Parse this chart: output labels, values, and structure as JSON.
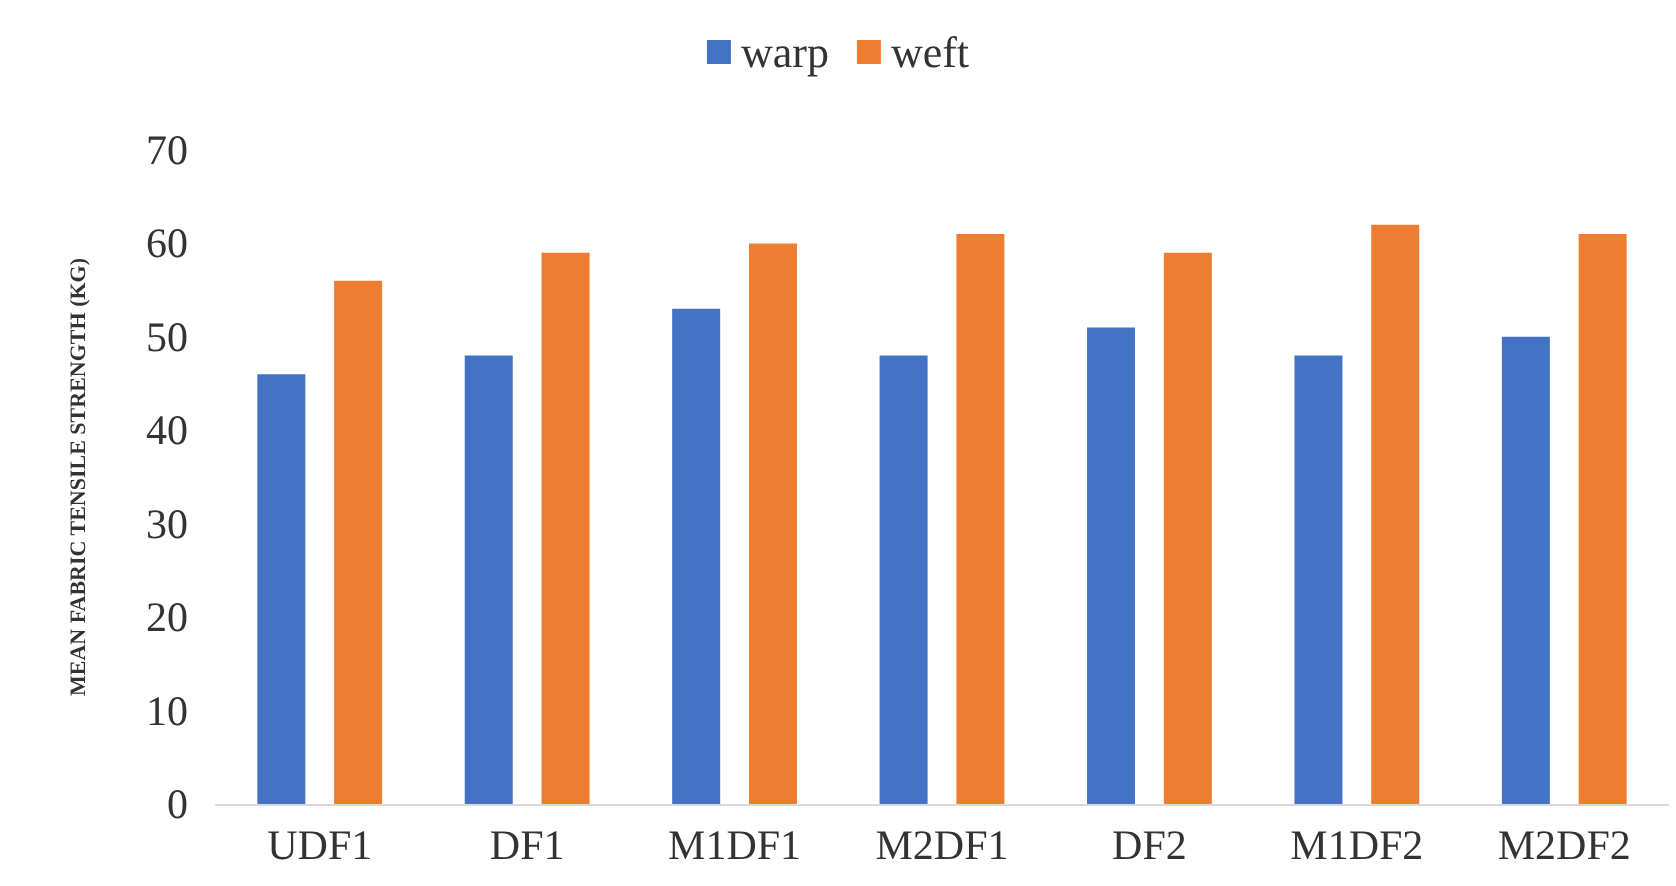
{
  "chart_data": {
    "type": "bar",
    "ylabel": "MEAN FABRIC TENSILE STRENGTH (KG)",
    "categories": [
      "UDF1",
      "DF1",
      "M1DF1",
      "M2DF1",
      "DF2",
      "M1DF2",
      "M2DF2"
    ],
    "series": [
      {
        "name": "warp",
        "color": "#4472c4",
        "values": [
          46,
          48,
          53,
          48,
          51,
          48,
          50
        ]
      },
      {
        "name": "weft",
        "color": "#ed7d31",
        "values": [
          56,
          59,
          60,
          61,
          59,
          62,
          61
        ]
      }
    ],
    "ylim": [
      0,
      70
    ],
    "yticks": [
      0,
      10,
      20,
      30,
      40,
      50,
      60,
      70
    ],
    "grid": false,
    "legend": "top"
  }
}
